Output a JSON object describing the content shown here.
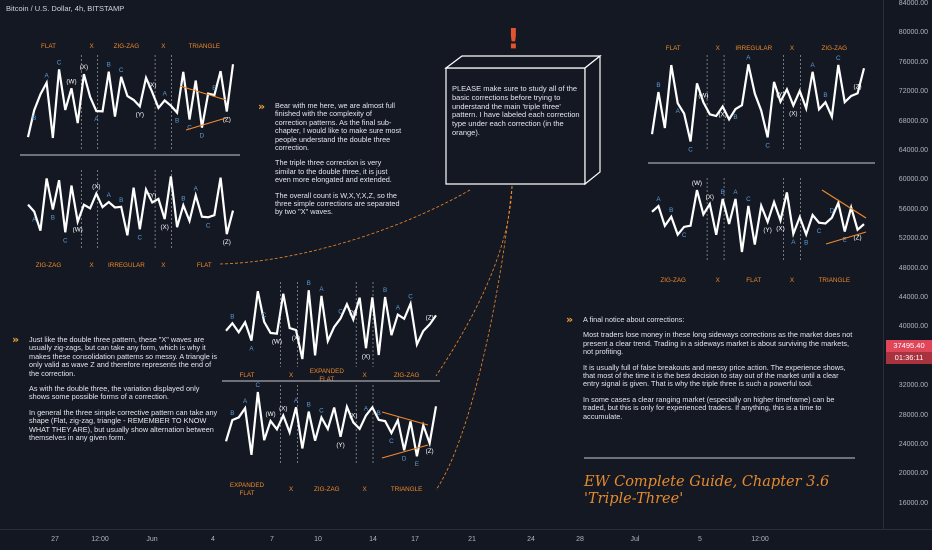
{
  "header": {
    "symbol_line": "Bitcoin / U.S. Dollar, 4h, BITSTAMP"
  },
  "y_axis": {
    "ticks": [
      "84000.00",
      "80000.00",
      "76000.00",
      "72000.00",
      "68000.00",
      "64000.00",
      "60000.00",
      "56000.00",
      "52000.00",
      "48000.00",
      "44000.00",
      "40000.00",
      "36000.00",
      "32000.00",
      "28000.00",
      "24000.00",
      "20000.00",
      "16000.00"
    ]
  },
  "x_axis": {
    "ticks": [
      "27",
      "12:00",
      "Jun",
      "4",
      "7",
      "10",
      "14",
      "17",
      "21",
      "24",
      "28",
      "Jul",
      "5",
      "12:00"
    ]
  },
  "price": {
    "last": "37495.40",
    "countdown": "01:36:11",
    "label_bg": "#e0465a",
    "time_bg": "#a9323f"
  },
  "colors": {
    "wave": "#ffffff",
    "annot_orange": "#f08a2a",
    "annot_blue": "#5a9ed9",
    "title_orange": "#e58a2e",
    "bg": "#131722"
  },
  "left_text": {
    "paragraphs": [
      "Bear with me here, we are almost full finished with the complexity of correction patterns. As the final sub-chapter, I would like to make sure most people understand the double three correction.",
      "The triple three correction is very similar to the double three, it is just even more elongated and extended.",
      "The overall count is W,X,Y,X,Z, so the three simple corrections are separated by two \"X\" waves."
    ]
  },
  "bottom_left_text": {
    "paragraphs": [
      "Just like the double three pattern, these \"X\" waves are usually zig-zags, but can take any form, which is why it makes these consolidation patterns so messy. A triangle is only valid as wave Z and therefore represents the end of the correction.",
      "As with the double three, the variation displayed only shows some possible forms of a correction.",
      "In general the three simple corrective pattern can take any shape (Flat, zig-zag, triangle - REMEMBER TO KNOW WHAT THEY ARE), but usually show alternation between themselves in any given form."
    ]
  },
  "note_box": {
    "text": "PLEASE make sure to study all of the basic corrections before trying to understand the main 'triple three' pattern. I have labeled each correction type under each correction (in the orange).",
    "mark": "!"
  },
  "right_text": {
    "heading": "A final notice about corrections:",
    "paragraphs": [
      "Most traders lose money in these long sideways corrections as the market does not present a clear trend. Trading in a sideways market is about surviving the markets, not profiting.",
      "It is usually full of false breakouts and messy price action. The experience shows, that most of the time it is the best decision to stay out of the market until a clear entry signal is given. That is why the triple three is such a powerful tool.",
      "In some cases a clear ranging market (especially on higher timeframe) can be traded, but this is only for experienced traders. If anything, this is a time to accumulate."
    ]
  },
  "title": {
    "line1": "EW Complete Guide, Chapter 3.6",
    "line2": "'Triple-Three'"
  },
  "chart_data": {
    "type": "line",
    "title": "",
    "note": "",
    "panels": [
      {
        "id": "tl-top",
        "types": [
          "FLAT",
          "X",
          "ZIG-ZAG",
          "X",
          "TRIANGLE"
        ],
        "labels": [
          {
            "t": "B",
            "c": "b"
          },
          {
            "t": "A",
            "c": "b"
          },
          {
            "t": "C",
            "c": "b"
          },
          {
            "t": "(W)",
            "c": "w"
          },
          {
            "t": "(X)",
            "c": "w"
          },
          {
            "t": "A",
            "c": "b"
          },
          {
            "t": "B",
            "c": "b"
          },
          {
            "t": "C",
            "c": "b"
          },
          {
            "t": "(Y)",
            "c": "w"
          },
          {
            "t": "(X)",
            "c": "w"
          },
          {
            "t": "A",
            "c": "b"
          },
          {
            "t": "B",
            "c": "b"
          },
          {
            "t": "C",
            "c": "b"
          },
          {
            "t": "D",
            "c": "b"
          },
          {
            "t": "E",
            "c": "b"
          },
          {
            "t": "(Z)",
            "c": "w"
          }
        ]
      },
      {
        "id": "tl-bot",
        "types": [
          "ZIG-ZAG",
          "X",
          "IRREGULAR",
          "X",
          "FLAT"
        ],
        "labels": [
          {
            "t": "A",
            "c": "b"
          },
          {
            "t": "B",
            "c": "b"
          },
          {
            "t": "C",
            "c": "b"
          },
          {
            "t": "(W)",
            "c": "w"
          },
          {
            "t": "(X)",
            "c": "w"
          },
          {
            "t": "A",
            "c": "b"
          },
          {
            "t": "B",
            "c": "b"
          },
          {
            "t": "C",
            "c": "b"
          },
          {
            "t": "(Y)",
            "c": "w"
          },
          {
            "t": "(X)",
            "c": "w"
          },
          {
            "t": "B",
            "c": "b"
          },
          {
            "t": "A",
            "c": "b"
          },
          {
            "t": "C",
            "c": "b"
          },
          {
            "t": "(Z)",
            "c": "w"
          }
        ]
      },
      {
        "id": "mid-top",
        "types": [
          "FLAT",
          "X",
          "EXPANDED FLAT",
          "X",
          "ZIG-ZAG"
        ],
        "labels": [
          {
            "t": "B",
            "c": "b"
          },
          {
            "t": "A",
            "c": "b"
          },
          {
            "t": "C",
            "c": "b"
          },
          {
            "t": "(W)",
            "c": "w"
          },
          {
            "t": "(X)",
            "c": "w"
          },
          {
            "t": "B",
            "c": "b"
          },
          {
            "t": "A",
            "c": "b"
          },
          {
            "t": "C",
            "c": "b"
          },
          {
            "t": "(Y)",
            "c": "w"
          },
          {
            "t": "(X)",
            "c": "w"
          },
          {
            "t": "B",
            "c": "b"
          },
          {
            "t": "A",
            "c": "b"
          },
          {
            "t": "C",
            "c": "b"
          },
          {
            "t": "(Z)",
            "c": "w"
          }
        ]
      },
      {
        "id": "mid-bot",
        "types": [
          "EXPANDED FLAT",
          "X",
          "ZIG-ZAG",
          "X",
          "TRIANGLE"
        ],
        "labels": [
          {
            "t": "B",
            "c": "b"
          },
          {
            "t": "A",
            "c": "b"
          },
          {
            "t": "C",
            "c": "b"
          },
          {
            "t": "(W)",
            "c": "w"
          },
          {
            "t": "(X)",
            "c": "w"
          },
          {
            "t": "A",
            "c": "b"
          },
          {
            "t": "B",
            "c": "b"
          },
          {
            "t": "C",
            "c": "b"
          },
          {
            "t": "(Y)",
            "c": "w"
          },
          {
            "t": "(X)",
            "c": "w"
          },
          {
            "t": "A",
            "c": "b"
          },
          {
            "t": "B",
            "c": "b"
          },
          {
            "t": "C",
            "c": "b"
          },
          {
            "t": "D",
            "c": "b"
          },
          {
            "t": "E",
            "c": "b"
          },
          {
            "t": "(Z)",
            "c": "w"
          }
        ]
      },
      {
        "id": "r-top",
        "types": [
          "FLAT",
          "X",
          "IRREGULAR",
          "X",
          "ZIG-ZAG"
        ],
        "labels": [
          {
            "t": "B",
            "c": "b"
          },
          {
            "t": "A",
            "c": "b"
          },
          {
            "t": "C",
            "c": "b"
          },
          {
            "t": "(W)",
            "c": "w"
          },
          {
            "t": "(X)",
            "c": "w"
          },
          {
            "t": "B",
            "c": "b"
          },
          {
            "t": "A",
            "c": "b"
          },
          {
            "t": "C",
            "c": "b"
          },
          {
            "t": "(Y)",
            "c": "w"
          },
          {
            "t": "(X)",
            "c": "w"
          },
          {
            "t": "A",
            "c": "b"
          },
          {
            "t": "B",
            "c": "b"
          },
          {
            "t": "C",
            "c": "b"
          },
          {
            "t": "(Z)",
            "c": "w"
          }
        ]
      },
      {
        "id": "r-bot",
        "types": [
          "ZIG-ZAG",
          "X",
          "FLAT",
          "X",
          "TRIANGLE"
        ],
        "labels": [
          {
            "t": "A",
            "c": "b"
          },
          {
            "t": "B",
            "c": "b"
          },
          {
            "t": "C",
            "c": "b"
          },
          {
            "t": "(W)",
            "c": "w"
          },
          {
            "t": "(X)",
            "c": "w"
          },
          {
            "t": "B",
            "c": "b"
          },
          {
            "t": "A",
            "c": "b"
          },
          {
            "t": "C",
            "c": "b"
          },
          {
            "t": "(Y)",
            "c": "w"
          },
          {
            "t": "(X)",
            "c": "w"
          },
          {
            "t": "A",
            "c": "b"
          },
          {
            "t": "B",
            "c": "b"
          },
          {
            "t": "C",
            "c": "b"
          },
          {
            "t": "D",
            "c": "b"
          },
          {
            "t": "E",
            "c": "b"
          },
          {
            "t": "(Z)",
            "c": "w"
          }
        ]
      }
    ]
  }
}
